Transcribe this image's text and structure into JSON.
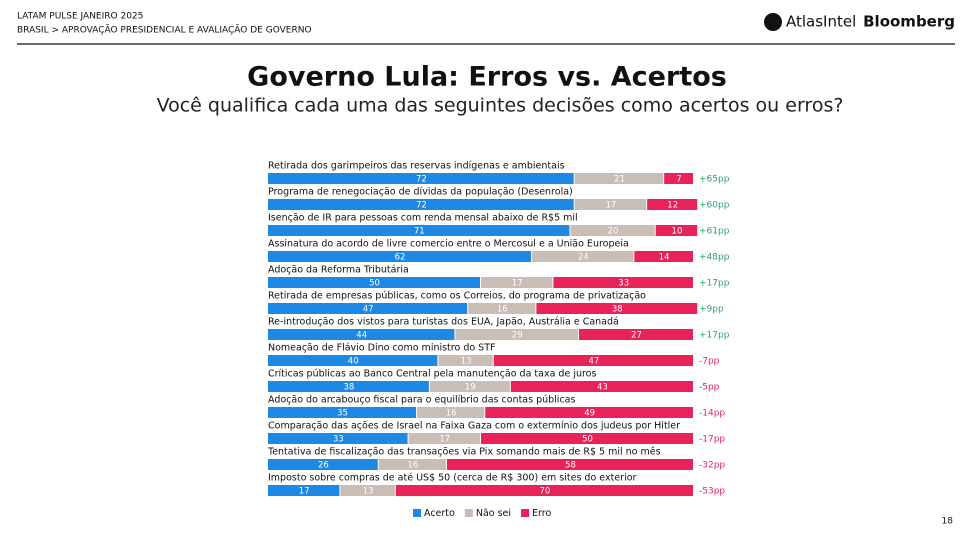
{
  "header": {
    "kicker": "LATAM PULSE JANEIRO 2025",
    "breadcrumb": "BRASIL > APROVAÇÃO PRESIDENCIAL E AVALIAÇÃO DE GOVERNO",
    "brand1": "AtlasIntel",
    "brand2": "Bloomberg",
    "page": "18"
  },
  "chart_data": {
    "type": "stacked-bar-horizontal",
    "title": "Governo Lula: Erros vs. Acertos",
    "subtitle": "Você qualifica cada uma das seguintes decisões como acertos ou erros?",
    "xlim": [
      0,
      100
    ],
    "categories": [
      "Retirada dos garimpeiros das reservas indígenas e ambientais",
      "Programa de renegociação de dívidas da população (Desenrola)",
      "Isenção de IR para pessoas com renda mensal abaixo de R$5 mil",
      "Assinatura do acordo de livre comercio entre o Mercosul e a União Europeia",
      "Adoção da Reforma Tributária",
      "Retirada de empresas públicas, como os Correios, do programa de privatização",
      "Re-introdução dos vistos para turistas dos EUA, Japão, Austrália e Canadá",
      "Nomeação de Flávio Dino como ministro do STF",
      "Críticas públicas ao Banco Central pela manutenção da taxa de juros",
      "Adoção do arcabouço fiscal para o equilíbrio das contas públicas",
      "Comparação das ações de Israel na Faixa Gaza com o extermínio dos judeus por Hitler",
      "Tentativa de fiscalização das transações via Pix somando mais de R$ 5 mil no mês",
      "Imposto sobre compras de até US$ 50 (cerca de R$ 300) em sites do exterior"
    ],
    "series": [
      {
        "name": "Acerto",
        "color": "#1e88e5",
        "values": [
          72,
          72,
          71,
          62,
          50,
          47,
          44,
          40,
          38,
          35,
          33,
          26,
          17
        ]
      },
      {
        "name": "Não sei",
        "color": "#c9bdb6",
        "values": [
          21,
          17,
          20,
          24,
          17,
          16,
          29,
          13,
          19,
          16,
          17,
          16,
          13
        ]
      },
      {
        "name": "Erro",
        "color": "#e8235a",
        "values": [
          7,
          12,
          10,
          14,
          33,
          38,
          27,
          47,
          43,
          49,
          50,
          58,
          70
        ]
      }
    ],
    "net": {
      "values": [
        65,
        60,
        61,
        48,
        17,
        9,
        17,
        -7,
        -5,
        -14,
        -17,
        -32,
        -53
      ],
      "value_labels": [
        "+65pp",
        "+60pp",
        "+61pp",
        "+48pp",
        "+17pp",
        "+9pp",
        "+17pp",
        "-7pp",
        "-5pp",
        "-14pp",
        "-17pp",
        "-32pp",
        "-53pp"
      ],
      "colors": {
        "positive": "#2e9e6a",
        "negative": "#e8235a"
      }
    }
  }
}
